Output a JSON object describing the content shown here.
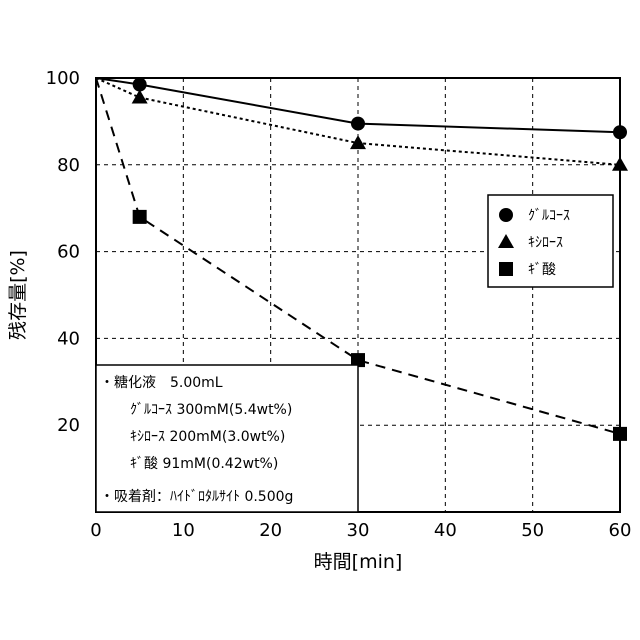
{
  "chart_data": {
    "type": "line",
    "xlabel": "時間[min]",
    "ylabel": "残存量[%]",
    "xlim": [
      0,
      60
    ],
    "ylim": [
      0,
      100
    ],
    "x_ticks": [
      0,
      10,
      20,
      30,
      40,
      50,
      60
    ],
    "y_ticks": [
      20,
      40,
      60,
      80,
      100
    ],
    "grid": true,
    "legend_position": "right",
    "series": [
      {
        "name": "ｸﾞﾙｺｰｽ",
        "marker": "circle",
        "line": "solid",
        "x": [
          0,
          5,
          30,
          60
        ],
        "values": [
          100,
          98.5,
          89.5,
          87.5
        ]
      },
      {
        "name": "ｷｼﾛｰｽ",
        "marker": "triangle",
        "line": "dotted",
        "x": [
          0,
          5,
          30,
          60
        ],
        "values": [
          100,
          95.5,
          85,
          80
        ]
      },
      {
        "name": "ｷﾞ酸",
        "marker": "square",
        "line": "dashed",
        "x": [
          0,
          5,
          30,
          60
        ],
        "values": [
          100,
          68,
          35,
          18
        ]
      }
    ],
    "annotation": [
      "・糖化液　5.00mL",
      "ｸﾞﾙｺｰｽ 300mM(5.4wt%)",
      "ｷｼﾛｰｽ 200mM(3.0wt%)",
      "ｷﾞ酸 91mM(0.42wt%)",
      "・吸着剤：ﾊｲﾄﾞﾛﾀﾙｻｲﾄ 0.500g"
    ]
  }
}
